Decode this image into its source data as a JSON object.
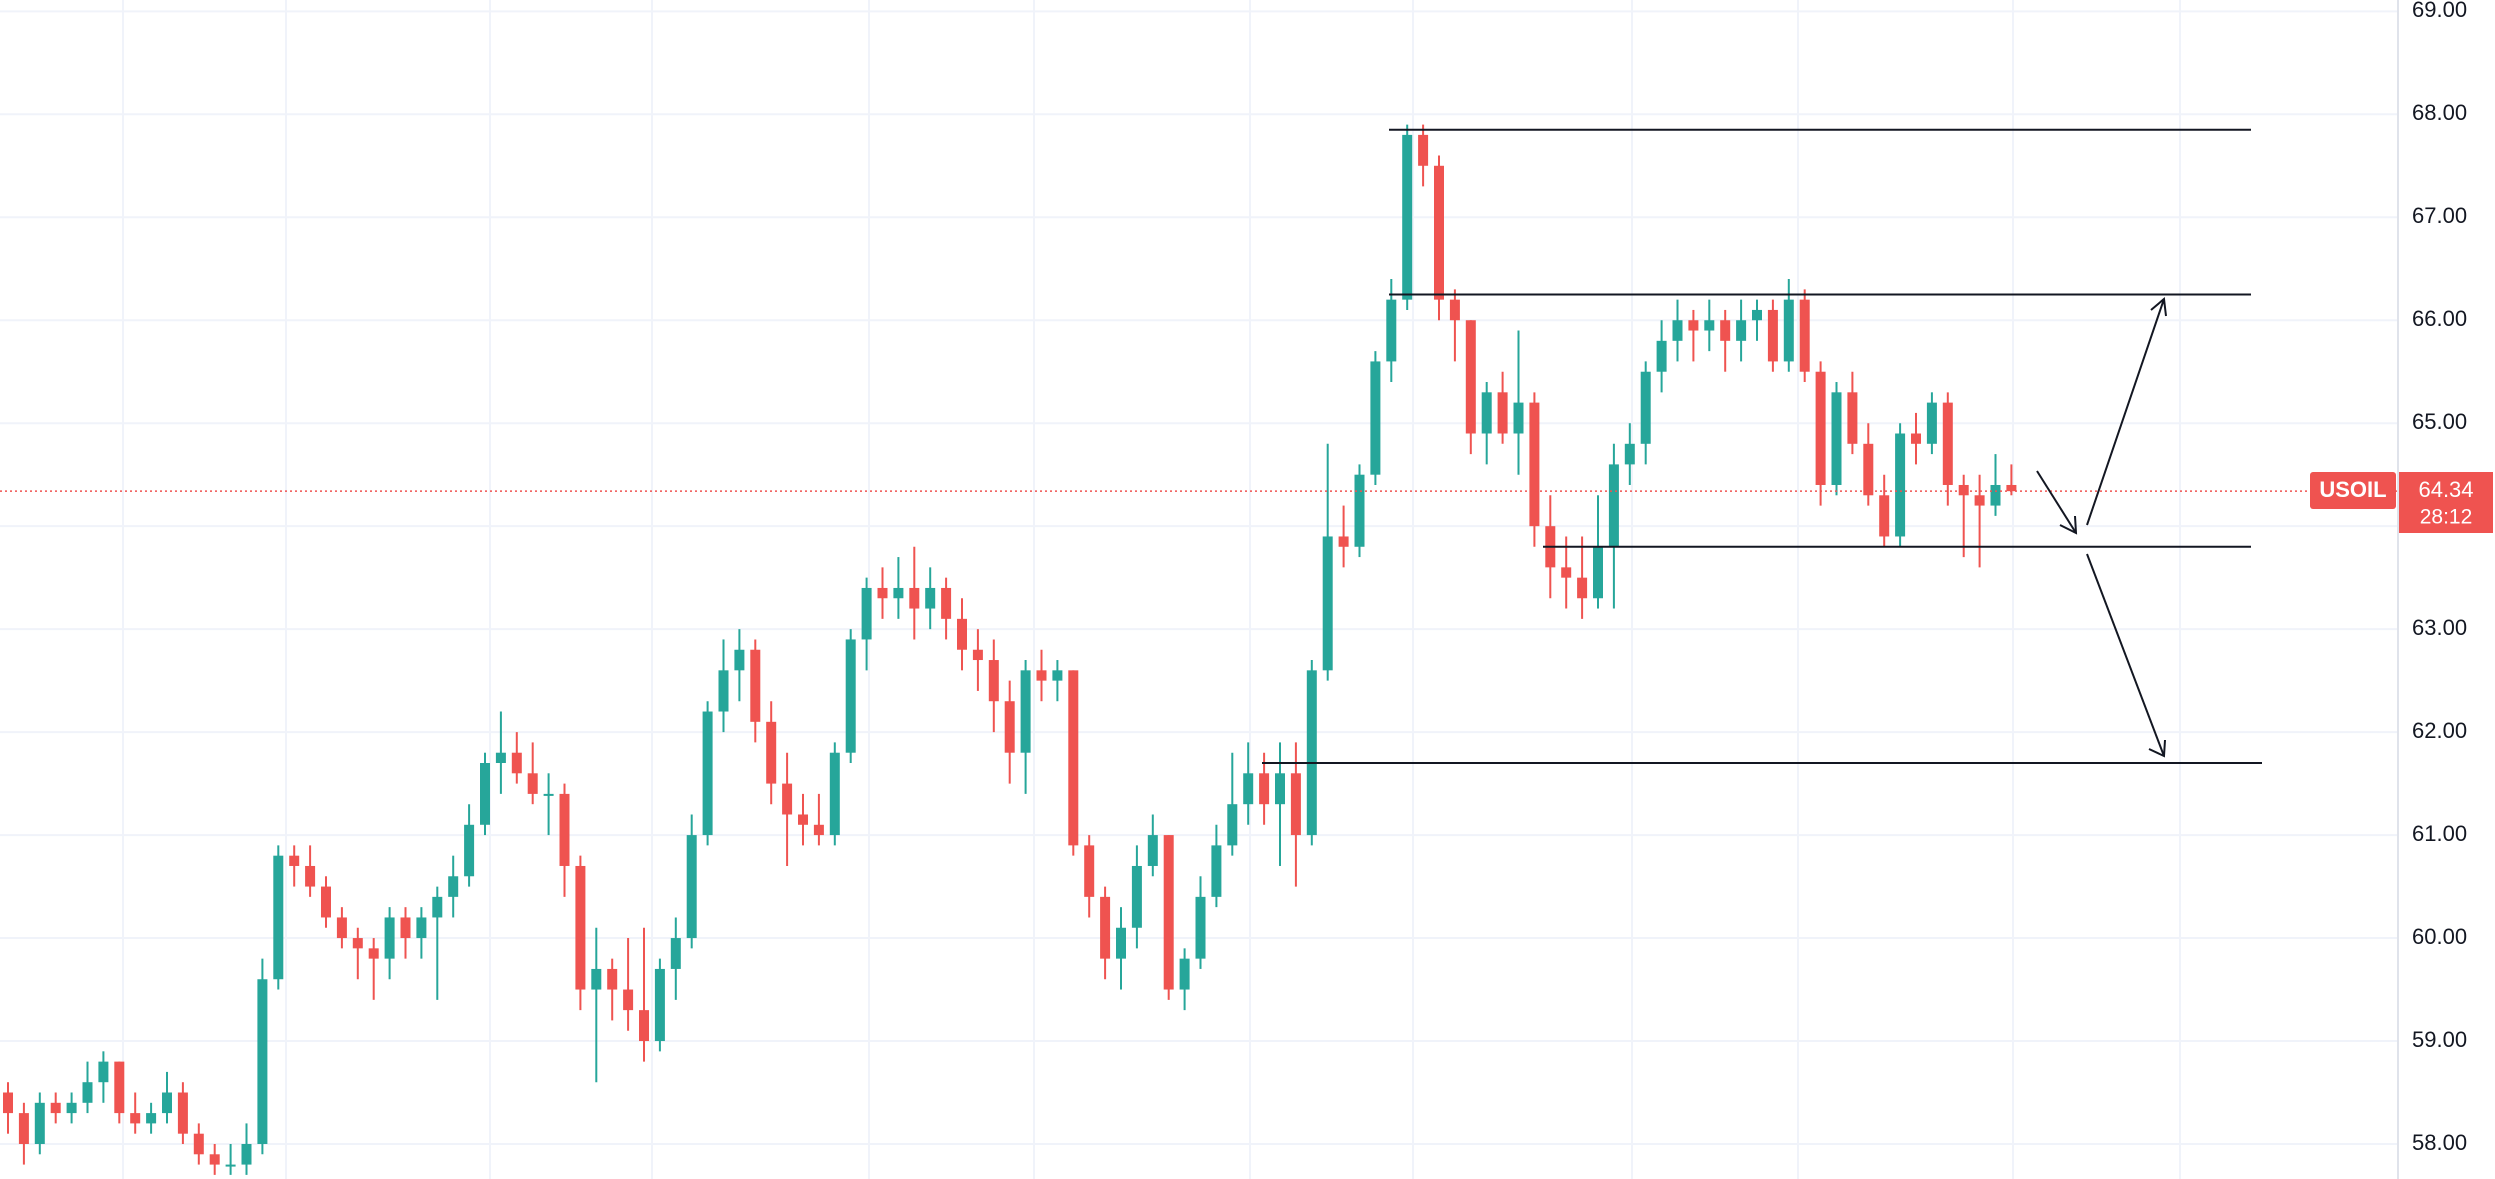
{
  "chart_data": {
    "type": "candlestick",
    "symbol": "USOIL",
    "last_price": {
      "value": 64.34,
      "label": "64.34"
    },
    "countdown": "28:12",
    "up_color": "#26a69a",
    "down_color": "#ef5350",
    "grid": true,
    "ylim": [
      57.66,
      69.11
    ],
    "yticks": [
      {
        "value": 58,
        "label": "58.00"
      },
      {
        "value": 59,
        "label": "59.00"
      },
      {
        "value": 60,
        "label": "60.00"
      },
      {
        "value": 61,
        "label": "61.00"
      },
      {
        "value": 62,
        "label": "62.00"
      },
      {
        "value": 63,
        "label": "63.00"
      },
      {
        "value": 64,
        "label": "64.00"
      },
      {
        "value": 65,
        "label": "65.00"
      },
      {
        "value": 66,
        "label": "66.00"
      },
      {
        "value": 67,
        "label": "67.00"
      },
      {
        "value": 68,
        "label": "68.00"
      },
      {
        "value": 69,
        "label": "69.00"
      }
    ],
    "levels": [
      67.85,
      66.25,
      63.8,
      61.7
    ],
    "candles": [
      [
        58.5,
        58.6,
        58.1,
        58.3
      ],
      [
        58.3,
        58.4,
        57.8,
        58.0
      ],
      [
        58.0,
        58.5,
        57.9,
        58.4
      ],
      [
        58.4,
        58.5,
        58.2,
        58.3
      ],
      [
        58.3,
        58.5,
        58.2,
        58.4
      ],
      [
        58.4,
        58.8,
        58.3,
        58.6
      ],
      [
        58.6,
        58.9,
        58.4,
        58.8
      ],
      [
        58.8,
        58.8,
        58.2,
        58.3
      ],
      [
        58.3,
        58.5,
        58.1,
        58.2
      ],
      [
        58.2,
        58.4,
        58.1,
        58.3
      ],
      [
        58.3,
        58.7,
        58.2,
        58.5
      ],
      [
        58.5,
        58.6,
        58.0,
        58.1
      ],
      [
        58.1,
        58.2,
        57.8,
        57.9
      ],
      [
        57.9,
        58.0,
        57.7,
        57.8
      ],
      [
        57.8,
        58.0,
        57.7,
        57.8
      ],
      [
        57.8,
        58.2,
        57.7,
        58.0
      ],
      [
        58.0,
        59.8,
        57.9,
        59.6
      ],
      [
        59.6,
        60.9,
        59.5,
        60.8
      ],
      [
        60.8,
        60.9,
        60.5,
        60.7
      ],
      [
        60.7,
        60.9,
        60.4,
        60.5
      ],
      [
        60.5,
        60.6,
        60.1,
        60.2
      ],
      [
        60.2,
        60.3,
        59.9,
        60.0
      ],
      [
        60.0,
        60.1,
        59.6,
        59.9
      ],
      [
        59.9,
        60.0,
        59.4,
        59.8
      ],
      [
        59.8,
        60.3,
        59.6,
        60.2
      ],
      [
        60.2,
        60.3,
        59.8,
        60.0
      ],
      [
        60.0,
        60.3,
        59.8,
        60.2
      ],
      [
        60.2,
        60.5,
        59.4,
        60.4
      ],
      [
        60.4,
        60.8,
        60.2,
        60.6
      ],
      [
        60.6,
        61.3,
        60.5,
        61.1
      ],
      [
        61.1,
        61.8,
        61.0,
        61.7
      ],
      [
        61.7,
        62.2,
        61.4,
        61.8
      ],
      [
        61.8,
        62.0,
        61.5,
        61.6
      ],
      [
        61.6,
        61.9,
        61.3,
        61.4
      ],
      [
        61.4,
        61.6,
        61.0,
        61.4
      ],
      [
        61.4,
        61.5,
        60.4,
        60.7
      ],
      [
        60.7,
        60.8,
        59.3,
        59.5
      ],
      [
        59.5,
        60.1,
        58.6,
        59.7
      ],
      [
        59.7,
        59.8,
        59.2,
        59.5
      ],
      [
        59.5,
        60.0,
        59.1,
        59.3
      ],
      [
        59.3,
        60.1,
        58.8,
        59.0
      ],
      [
        59.0,
        59.8,
        58.9,
        59.7
      ],
      [
        59.7,
        60.2,
        59.4,
        60.0
      ],
      [
        60.0,
        61.2,
        59.9,
        61.0
      ],
      [
        61.0,
        62.3,
        60.9,
        62.2
      ],
      [
        62.2,
        62.9,
        62.0,
        62.6
      ],
      [
        62.6,
        63.0,
        62.3,
        62.8
      ],
      [
        62.8,
        62.9,
        61.9,
        62.1
      ],
      [
        62.1,
        62.3,
        61.3,
        61.5
      ],
      [
        61.5,
        61.8,
        60.7,
        61.2
      ],
      [
        61.2,
        61.4,
        60.9,
        61.1
      ],
      [
        61.1,
        61.4,
        60.9,
        61.0
      ],
      [
        61.0,
        61.9,
        60.9,
        61.8
      ],
      [
        61.8,
        63.0,
        61.7,
        62.9
      ],
      [
        62.9,
        63.5,
        62.6,
        63.4
      ],
      [
        63.4,
        63.6,
        63.1,
        63.3
      ],
      [
        63.3,
        63.7,
        63.1,
        63.4
      ],
      [
        63.4,
        63.8,
        62.9,
        63.2
      ],
      [
        63.2,
        63.6,
        63.0,
        63.4
      ],
      [
        63.4,
        63.5,
        62.9,
        63.1
      ],
      [
        63.1,
        63.3,
        62.6,
        62.8
      ],
      [
        62.8,
        63.0,
        62.4,
        62.7
      ],
      [
        62.7,
        62.9,
        62.0,
        62.3
      ],
      [
        62.3,
        62.5,
        61.5,
        61.8
      ],
      [
        61.8,
        62.7,
        61.4,
        62.6
      ],
      [
        62.6,
        62.8,
        62.3,
        62.5
      ],
      [
        62.5,
        62.7,
        62.3,
        62.6
      ],
      [
        62.6,
        62.6,
        60.8,
        60.9
      ],
      [
        60.9,
        61.0,
        60.2,
        60.4
      ],
      [
        60.4,
        60.5,
        59.6,
        59.8
      ],
      [
        59.8,
        60.3,
        59.5,
        60.1
      ],
      [
        60.1,
        60.9,
        59.9,
        60.7
      ],
      [
        60.7,
        61.2,
        60.6,
        61.0
      ],
      [
        61.0,
        61.0,
        59.4,
        59.5
      ],
      [
        59.5,
        59.9,
        59.3,
        59.8
      ],
      [
        59.8,
        60.6,
        59.7,
        60.4
      ],
      [
        60.4,
        61.1,
        60.3,
        60.9
      ],
      [
        60.9,
        61.8,
        60.8,
        61.3
      ],
      [
        61.3,
        61.9,
        61.1,
        61.6
      ],
      [
        61.6,
        61.8,
        61.1,
        61.3
      ],
      [
        61.3,
        61.9,
        60.7,
        61.6
      ],
      [
        61.6,
        61.9,
        60.5,
        61.0
      ],
      [
        61.0,
        62.7,
        60.9,
        62.6
      ],
      [
        62.6,
        64.8,
        62.5,
        63.9
      ],
      [
        63.9,
        64.2,
        63.6,
        63.8
      ],
      [
        63.8,
        64.6,
        63.7,
        64.5
      ],
      [
        64.5,
        65.7,
        64.4,
        65.6
      ],
      [
        65.6,
        66.4,
        65.4,
        66.2
      ],
      [
        66.2,
        67.9,
        66.1,
        67.8
      ],
      [
        67.8,
        67.9,
        67.3,
        67.5
      ],
      [
        67.5,
        67.6,
        66.0,
        66.2
      ],
      [
        66.2,
        66.3,
        65.6,
        66.0
      ],
      [
        66.0,
        66.0,
        64.7,
        64.9
      ],
      [
        64.9,
        65.4,
        64.6,
        65.3
      ],
      [
        65.3,
        65.5,
        64.8,
        64.9
      ],
      [
        64.9,
        65.9,
        64.5,
        65.2
      ],
      [
        65.2,
        65.3,
        63.8,
        64.0
      ],
      [
        64.0,
        64.3,
        63.3,
        63.6
      ],
      [
        63.6,
        63.9,
        63.2,
        63.5
      ],
      [
        63.5,
        63.9,
        63.1,
        63.3
      ],
      [
        63.3,
        64.3,
        63.2,
        63.8
      ],
      [
        63.8,
        64.8,
        63.2,
        64.6
      ],
      [
        64.6,
        65.0,
        64.4,
        64.8
      ],
      [
        64.8,
        65.6,
        64.6,
        65.5
      ],
      [
        65.5,
        66.0,
        65.3,
        65.8
      ],
      [
        65.8,
        66.2,
        65.6,
        66.0
      ],
      [
        66.0,
        66.1,
        65.6,
        65.9
      ],
      [
        65.9,
        66.2,
        65.7,
        66.0
      ],
      [
        66.0,
        66.1,
        65.5,
        65.8
      ],
      [
        65.8,
        66.2,
        65.6,
        66.0
      ],
      [
        66.0,
        66.2,
        65.8,
        66.1
      ],
      [
        66.1,
        66.2,
        65.5,
        65.6
      ],
      [
        65.6,
        66.4,
        65.5,
        66.2
      ],
      [
        66.2,
        66.3,
        65.4,
        65.5
      ],
      [
        65.5,
        65.6,
        64.2,
        64.4
      ],
      [
        64.4,
        65.4,
        64.3,
        65.3
      ],
      [
        65.3,
        65.5,
        64.7,
        64.8
      ],
      [
        64.8,
        65.0,
        64.2,
        64.3
      ],
      [
        64.3,
        64.5,
        63.8,
        63.9
      ],
      [
        63.9,
        65.0,
        63.8,
        64.9
      ],
      [
        64.9,
        65.1,
        64.6,
        64.8
      ],
      [
        64.8,
        65.3,
        64.7,
        65.2
      ],
      [
        65.2,
        65.3,
        64.2,
        64.4
      ],
      [
        64.4,
        64.5,
        63.7,
        64.3
      ],
      [
        64.3,
        64.5,
        63.6,
        64.2
      ],
      [
        64.2,
        64.7,
        64.1,
        64.4
      ],
      [
        64.4,
        64.6,
        64.3,
        64.34
      ]
    ]
  }
}
